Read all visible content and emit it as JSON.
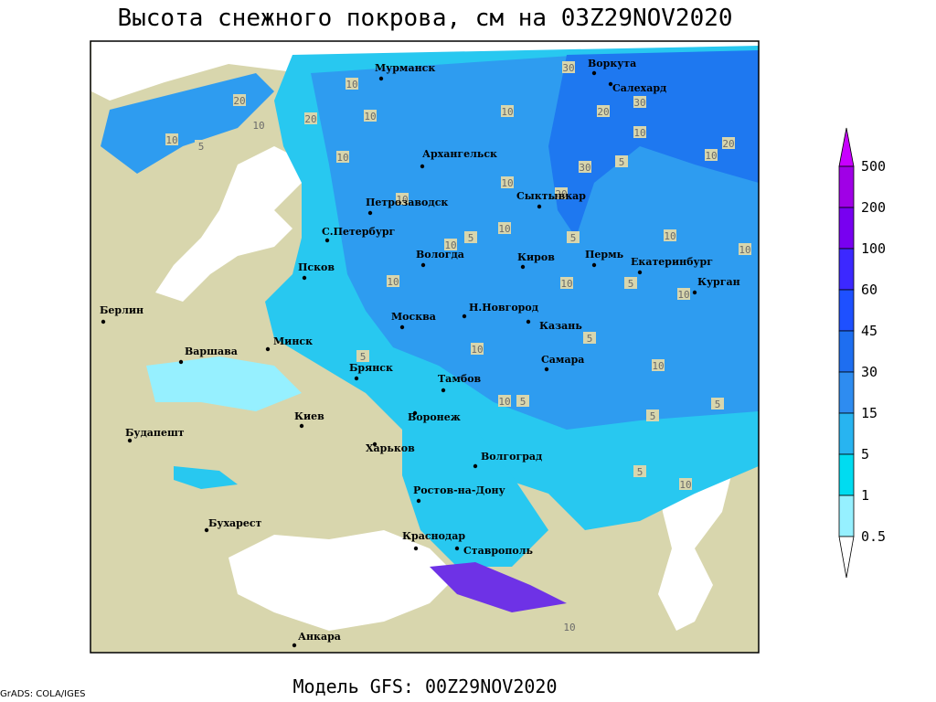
{
  "header": {
    "title": "Высота снежного покрова, см на 03Z29NOV2020"
  },
  "map": {
    "cities": [
      "Мурманск",
      "Воркута",
      "Салехард",
      "Архангельск",
      "Петрозаводск",
      "Сыктывкар",
      "С.Петербург",
      "Вологда",
      "Киров",
      "Пермь",
      "Екатеринбург",
      "Курган",
      "Псков",
      "Берлин",
      "Н.Новгород",
      "Москва",
      "Казань",
      "Варшава",
      "Минск",
      "Самара",
      "Брянск",
      "Тамбов",
      "Киев",
      "Воронеж",
      "Будапешт",
      "Харьков",
      "Волгоград",
      "Ростов-на-Дону",
      "Бухарест",
      "Краснодар",
      "Ставрополь",
      "Анкара"
    ],
    "contour_labels": [
      "10",
      "30",
      "20",
      "30",
      "20",
      "10",
      "10",
      "20",
      "10",
      "10",
      "5",
      "10",
      "10",
      "10",
      "20",
      "10",
      "30",
      "5",
      "10",
      "20",
      "10",
      "5",
      "10",
      "5",
      "10",
      "10",
      "10",
      "10",
      "5",
      "10",
      "5",
      "10",
      "5",
      "10",
      "5",
      "5",
      "10",
      "5",
      "5",
      "10",
      "10"
    ]
  },
  "legend": {
    "levels": [
      500,
      200,
      100,
      60,
      45,
      30,
      15,
      5,
      1,
      0.5
    ],
    "colors": [
      "#c800ff",
      "#a000e6",
      "#7800f0",
      "#3c28ff",
      "#1e50ff",
      "#1e6ef0",
      "#2e8cf0",
      "#28b4f0",
      "#00dcf0",
      "#96f0ff",
      "#ffffff"
    ]
  },
  "footer": {
    "model": "Модель GFS: 00Z29NOV2020",
    "credit": "GrADS: COLA/IGES"
  }
}
